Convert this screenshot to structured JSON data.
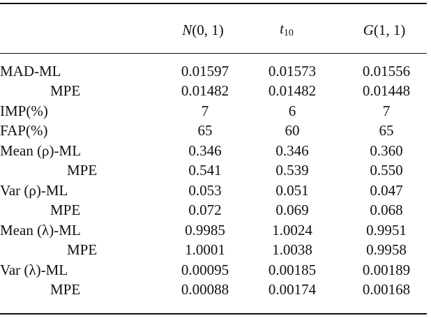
{
  "table": {
    "columns": [
      {
        "pre": "N",
        "rest": "(0, 1)",
        "sub": ""
      },
      {
        "pre": "t",
        "rest": "",
        "sub": "10"
      },
      {
        "pre": "G",
        "rest": "(1, 1)",
        "sub": ""
      }
    ],
    "rows": [
      {
        "label": "MAD-ML",
        "indent": 0,
        "values": [
          "0.01597",
          "0.01573",
          "0.01556"
        ]
      },
      {
        "label": "MPE",
        "indent": 2,
        "values": [
          "0.01482",
          "0.01482",
          "0.01448"
        ]
      },
      {
        "label": "IMP(%)",
        "indent": 0,
        "values": [
          "7",
          "6",
          "7"
        ]
      },
      {
        "label": "FAP(%)",
        "indent": 0,
        "values": [
          "65",
          "60",
          "65"
        ]
      },
      {
        "label": "Mean (ρ)-ML",
        "indent": 0,
        "values": [
          "0.346",
          "0.346",
          "0.360"
        ]
      },
      {
        "label": "MPE",
        "indent": 3,
        "values": [
          "0.541",
          "0.539",
          "0.550"
        ]
      },
      {
        "label": "Var (ρ)-ML",
        "indent": 0,
        "values": [
          "0.053",
          "0.051",
          "0.047"
        ]
      },
      {
        "label": "MPE",
        "indent": 2,
        "values": [
          "0.072",
          "0.069",
          "0.068"
        ]
      },
      {
        "label": "Mean (λ)-ML",
        "indent": 0,
        "values": [
          "0.9985",
          "1.0024",
          "0.9951"
        ]
      },
      {
        "label": "MPE",
        "indent": 3,
        "values": [
          "1.0001",
          "1.0038",
          "0.9958"
        ]
      },
      {
        "label": "Var (λ)-ML",
        "indent": 0,
        "values": [
          "0.00095",
          "0.00185",
          "0.00189"
        ]
      },
      {
        "label": "MPE",
        "indent": 2,
        "values": [
          "0.00088",
          "0.00174",
          "0.00168"
        ]
      }
    ]
  }
}
